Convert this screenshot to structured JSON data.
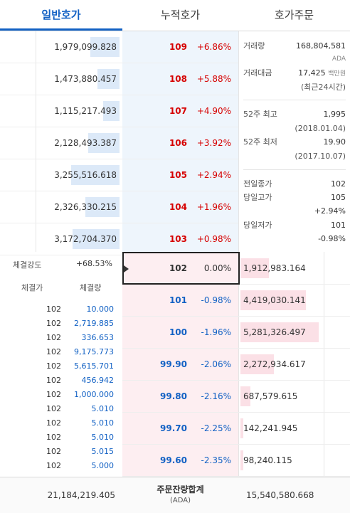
{
  "tabs": [
    {
      "label": "일반호가",
      "active": true
    },
    {
      "label": "누적호가",
      "active": false
    },
    {
      "label": "호가주문",
      "active": false
    }
  ],
  "asks": [
    {
      "qty": "1,979,099.828",
      "price": "109",
      "rate": "+6.86%"
    },
    {
      "qty": "1,473,880.457",
      "price": "108",
      "rate": "+5.88%"
    },
    {
      "qty": "1,115,217.493",
      "price": "107",
      "rate": "+4.90%"
    },
    {
      "qty": "2,128,493.387",
      "price": "106",
      "rate": "+3.92%"
    },
    {
      "qty": "3,255,516.618",
      "price": "105",
      "rate": "+2.94%"
    },
    {
      "qty": "2,326,330.215",
      "price": "104",
      "rate": "+1.96%"
    },
    {
      "qty": "3,172,704.370",
      "price": "103",
      "rate": "+0.98%"
    }
  ],
  "current": {
    "price": "102",
    "rate": "0.00%"
  },
  "bids": [
    {
      "price": "102",
      "rate": "0.00%",
      "qty": "1,912,983.164"
    },
    {
      "price": "101",
      "rate": "-0.98%",
      "qty": "4,419,030.141"
    },
    {
      "price": "100",
      "rate": "-1.96%",
      "qty": "5,281,326.497"
    },
    {
      "price": "99.90",
      "rate": "-2.06%",
      "qty": "2,272,934.617"
    },
    {
      "price": "99.80",
      "rate": "-2.16%",
      "qty": "687,579.615"
    },
    {
      "price": "99.70",
      "rate": "-2.25%",
      "qty": "142,241.945"
    },
    {
      "price": "99.60",
      "rate": "-2.35%",
      "qty": "98,240.115"
    }
  ],
  "info": {
    "volume_label": "거래량",
    "volume_value": "168,804,581",
    "volume_unit": "ADA",
    "amount_label": "거래대금",
    "amount_value": "17,425",
    "amount_unit": "백만원",
    "amount_note": "(최근24시간)",
    "high52_label": "52주 최고",
    "high52_value": "1,995",
    "high52_date": "(2018.01.04)",
    "low52_label": "52주 최저",
    "low52_value": "19.90",
    "low52_date": "(2017.10.07)",
    "prev_close_label": "전일종가",
    "prev_close_value": "102",
    "day_high_label": "당일고가",
    "day_high_value": "105",
    "day_high_rate": "+2.94%",
    "day_low_label": "당일저가",
    "day_low_value": "101",
    "day_low_rate": "-0.98%"
  },
  "strength": {
    "label": "체결강도",
    "value": "+68.53%",
    "col_price": "체결가",
    "col_qty": "체결량"
  },
  "trades": [
    {
      "price": "102",
      "qty": "10.000"
    },
    {
      "price": "102",
      "qty": "2,719.885"
    },
    {
      "price": "102",
      "qty": "336.653"
    },
    {
      "price": "102",
      "qty": "9,175.773"
    },
    {
      "price": "102",
      "qty": "5,615.701"
    },
    {
      "price": "102",
      "qty": "456.942"
    },
    {
      "price": "102",
      "qty": "1,000.000"
    },
    {
      "price": "102",
      "qty": "5.010"
    },
    {
      "price": "102",
      "qty": "5.010"
    },
    {
      "price": "102",
      "qty": "5.010"
    },
    {
      "price": "102",
      "qty": "5.015"
    },
    {
      "price": "102",
      "qty": "5.000"
    }
  ],
  "footer": {
    "ask_total": "21,184,219.405",
    "title": "주문잔량합계",
    "unit": "(ADA)",
    "bid_total": "15,540,580.668"
  },
  "colors": {
    "accent": "#1261c4",
    "up": "#d60000",
    "down": "#1261c4"
  }
}
